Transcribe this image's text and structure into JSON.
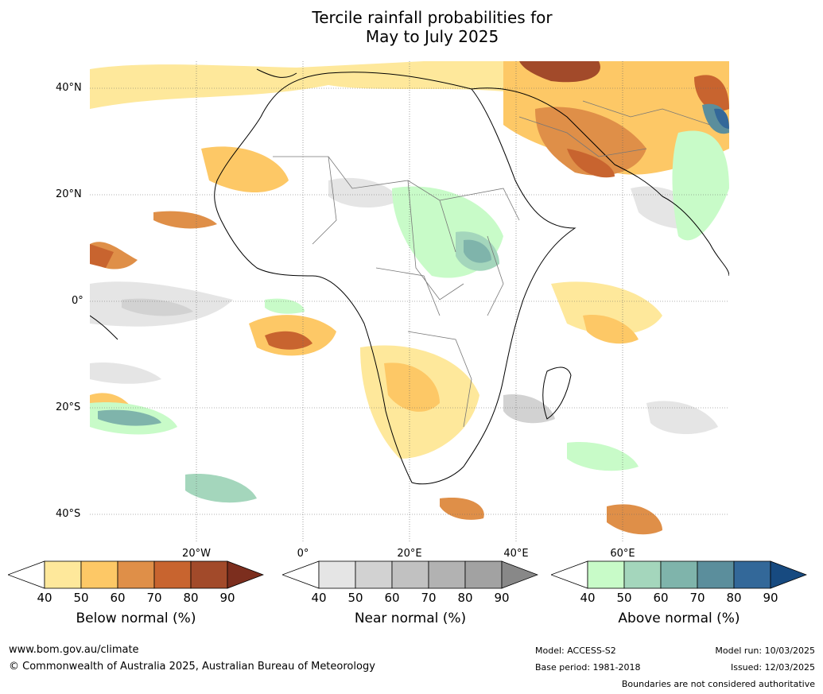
{
  "title": {
    "line1": "Tercile rainfall probabilities for",
    "line2": "May to July 2025"
  },
  "map": {
    "lat_labels": [
      "40°N",
      "20°N",
      "0°",
      "20°S",
      "40°S"
    ],
    "lon_labels": [
      "20°W",
      "0°",
      "20°E",
      "40°E",
      "60°E"
    ]
  },
  "colorbars": {
    "below": {
      "label": "Below normal (%)",
      "ticks": [
        "40",
        "50",
        "60",
        "70",
        "80",
        "90"
      ],
      "colors": [
        "#ffffff",
        "#fee89b",
        "#fdc866",
        "#df8f48",
        "#c8642f",
        "#a24a2a",
        "#7c2e1e"
      ]
    },
    "near": {
      "label": "Near normal (%)",
      "ticks": [
        "40",
        "50",
        "60",
        "70",
        "80",
        "90"
      ],
      "colors": [
        "#ffffff",
        "#e5e5e5",
        "#d2d2d2",
        "#c1c1c1",
        "#b2b2b2",
        "#a2a2a2",
        "#888888"
      ]
    },
    "above": {
      "label": "Above normal (%)",
      "ticks": [
        "40",
        "50",
        "60",
        "70",
        "80",
        "90"
      ],
      "colors": [
        "#ffffff",
        "#c8fbc8",
        "#a4d6bc",
        "#7fb4ab",
        "#5b8e9c",
        "#336899",
        "#174a80"
      ]
    }
  },
  "footer": {
    "website": "www.bom.gov.au/climate",
    "copyright": "© Commonwealth of Australia 2025, Australian Bureau of Meteorology",
    "model": "Model: ACCESS-S2",
    "base_period": "Base period: 1981-2018",
    "model_run": "Model run: 10/03/2025",
    "issued": "Issued: 12/03/2025",
    "boundaries_note": "Boundaries are not considered authoritative"
  }
}
